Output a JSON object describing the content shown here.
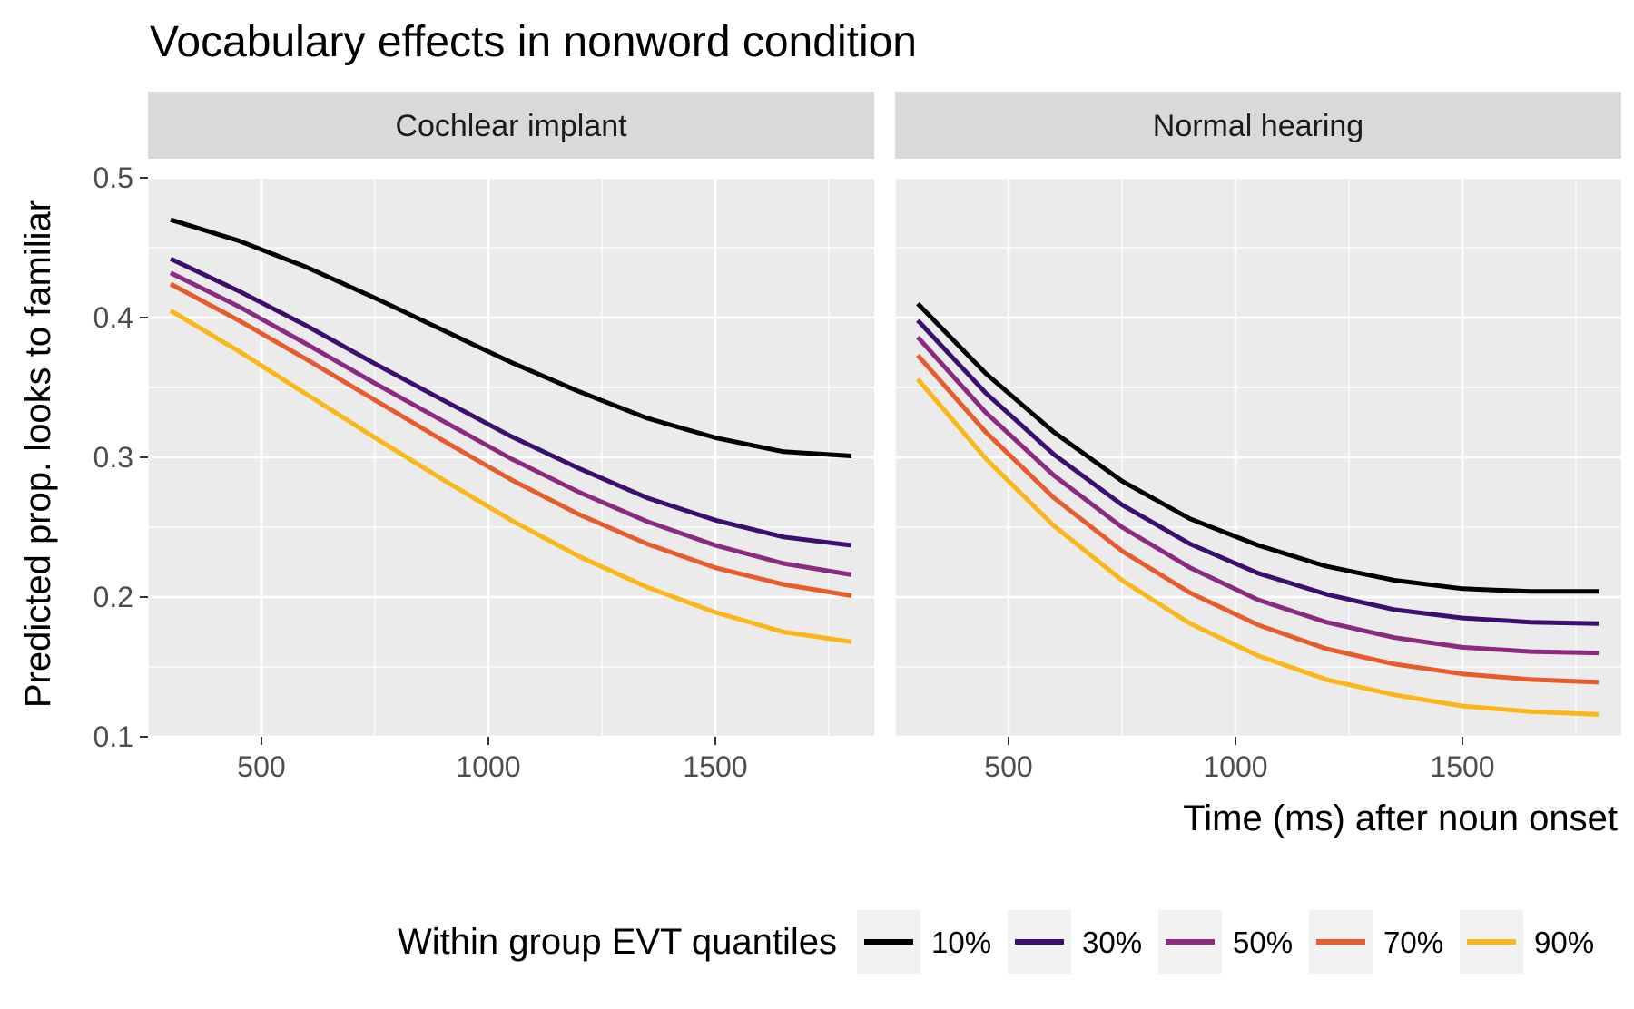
{
  "chart_data": {
    "type": "line",
    "title": "Vocabulary effects in nonword condition",
    "xlabel": "Time (ms) after noun onset",
    "ylabel": "Predicted prop. looks to familiar",
    "xlim": [
      250,
      1850
    ],
    "ylim": [
      0.1,
      0.5
    ],
    "x_ticks": [
      500,
      1000,
      1500
    ],
    "x_tick_labels": [
      "500",
      "1000",
      "1500"
    ],
    "y_ticks": [
      0.1,
      0.2,
      0.3,
      0.4,
      0.5
    ],
    "y_tick_labels": [
      "0.1",
      "0.2",
      "0.3",
      "0.4",
      "0.5"
    ],
    "grid": true,
    "legend": {
      "title": "Within group EVT quantiles",
      "position": "bottom",
      "entries": [
        "10%",
        "30%",
        "50%",
        "70%",
        "90%"
      ]
    },
    "x": [
      300,
      450,
      600,
      750,
      900,
      1050,
      1200,
      1350,
      1500,
      1650,
      1800
    ],
    "panels": [
      {
        "label": "Cochlear implant",
        "series": [
          {
            "name": "10%",
            "color": "#000000",
            "values": [
              0.47,
              0.455,
              0.436,
              0.414,
              0.391,
              0.368,
              0.347,
              0.328,
              0.314,
              0.304,
              0.301
            ]
          },
          {
            "name": "30%",
            "color": "#3b0f70",
            "values": [
              0.442,
              0.419,
              0.394,
              0.367,
              0.341,
              0.315,
              0.292,
              0.271,
              0.255,
              0.243,
              0.237
            ]
          },
          {
            "name": "50%",
            "color": "#8c2981",
            "values": [
              0.432,
              0.408,
              0.381,
              0.353,
              0.326,
              0.299,
              0.275,
              0.254,
              0.237,
              0.224,
              0.216
            ]
          },
          {
            "name": "70%",
            "color": "#e85b2d",
            "values": [
              0.424,
              0.398,
              0.37,
              0.341,
              0.312,
              0.284,
              0.259,
              0.238,
              0.221,
              0.209,
              0.201
            ]
          },
          {
            "name": "90%",
            "color": "#fbb61a",
            "values": [
              0.405,
              0.376,
              0.345,
              0.314,
              0.284,
              0.255,
              0.229,
              0.207,
              0.189,
              0.175,
              0.168
            ]
          }
        ]
      },
      {
        "label": "Normal hearing",
        "series": [
          {
            "name": "10%",
            "color": "#000000",
            "values": [
              0.41,
              0.36,
              0.318,
              0.283,
              0.256,
              0.237,
              0.222,
              0.212,
              0.206,
              0.204,
              0.204
            ]
          },
          {
            "name": "30%",
            "color": "#3b0f70",
            "values": [
              0.398,
              0.346,
              0.302,
              0.266,
              0.238,
              0.217,
              0.202,
              0.191,
              0.185,
              0.182,
              0.181
            ]
          },
          {
            "name": "50%",
            "color": "#8c2981",
            "values": [
              0.386,
              0.332,
              0.287,
              0.25,
              0.221,
              0.198,
              0.182,
              0.171,
              0.164,
              0.161,
              0.16
            ]
          },
          {
            "name": "70%",
            "color": "#e85b2d",
            "values": [
              0.373,
              0.318,
              0.271,
              0.233,
              0.203,
              0.18,
              0.163,
              0.152,
              0.145,
              0.141,
              0.139
            ]
          },
          {
            "name": "90%",
            "color": "#fbb61a",
            "values": [
              0.356,
              0.299,
              0.251,
              0.212,
              0.181,
              0.158,
              0.141,
              0.13,
              0.122,
              0.118,
              0.116
            ]
          }
        ]
      }
    ]
  }
}
